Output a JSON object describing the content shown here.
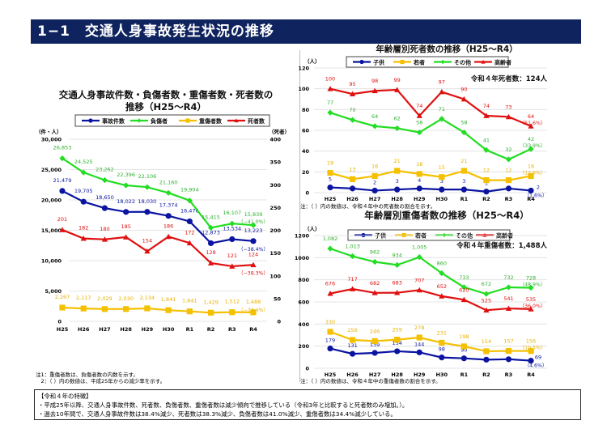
{
  "page": {
    "title": "1−1　交通人身事故発生状況の推移"
  },
  "chart_data": [
    {
      "id": "main",
      "type": "line",
      "title": "交通人身事故件数・負傷者数・重傷者数・死者数の推移（H25～R4）",
      "title_lines": [
        "交通人身事故件数・負傷者数・重傷者数・死者数の",
        "推移（H25～R4）"
      ],
      "categories": [
        "H25",
        "H26",
        "H27",
        "H28",
        "H29",
        "H30",
        "R1",
        "R2",
        "R3",
        "R4"
      ],
      "ylabel_left": "（件・人）",
      "ylabel_right": "（死者）",
      "ylim_left": [
        0,
        30000
      ],
      "ylim_right": [
        0,
        400
      ],
      "yticks_left": [
        "0",
        "5,000",
        "10,000",
        "15,000",
        "20,000",
        "25,000",
        "30,000"
      ],
      "yticks_left_values": [
        0,
        5000,
        10000,
        15000,
        20000,
        25000,
        30000
      ],
      "yticks_right": [
        "0",
        "50",
        "100",
        "150",
        "200",
        "250",
        "300",
        "350",
        "400"
      ],
      "yticks_right_values": [
        0,
        50,
        100,
        150,
        200,
        250,
        300,
        350,
        400
      ],
      "grid": true,
      "legend_position": "top",
      "series": [
        {
          "name": "事故件数",
          "color": "#0a14a0",
          "marker": "circle",
          "axis": "left",
          "values": [
            21479,
            19705,
            18650,
            18022,
            18030,
            17374,
            16476,
            12873,
            13534,
            13223
          ],
          "labels": [
            "21,479",
            "19,705",
            "18,650",
            "18,022",
            "18,030",
            "17,374",
            "16,476",
            "12,873",
            "13,534",
            "13,223"
          ],
          "last_note": "（−38.4%）"
        },
        {
          "name": "負傷者",
          "color": "#22dd22",
          "marker": "diamond",
          "axis": "left",
          "values": [
            26853,
            24525,
            23262,
            22396,
            22106,
            21160,
            19904,
            15415,
            16107,
            15839
          ],
          "labels": [
            "26,853",
            "24,525",
            "23,262",
            "22,396",
            "22,106",
            "21,160",
            "19,904",
            "15,415",
            "16,107",
            "15,839"
          ],
          "last_note": "（−41.0%）"
        },
        {
          "name": "重傷者数",
          "color": "#f5c000",
          "marker": "square",
          "axis": "left",
          "values": [
            2267,
            2117,
            2029,
            2030,
            2134,
            1841,
            1641,
            1429,
            1512,
            1488
          ],
          "labels": [
            "2,267",
            "2,117",
            "2,029",
            "2,030",
            "2,134",
            "1,841",
            "1,641",
            "1,429",
            "1,512",
            "1,488"
          ],
          "last_note": "（−34.4%）"
        },
        {
          "name": "死者数",
          "color": "#e01010",
          "marker": "triangle",
          "axis": "right",
          "values": [
            201,
            182,
            180,
            185,
            154,
            186,
            172,
            128,
            121,
            124
          ],
          "labels": [
            "201",
            "182",
            "180",
            "185",
            "154",
            "186",
            "172",
            "128",
            "121",
            "124"
          ],
          "last_note": "（−38.3%）"
        }
      ],
      "notes": [
        "注1：重傷者数は、負傷者数の内数を示す。",
        "　2：（ ）内の数値は、平成25年からの減少率を示す。"
      ]
    },
    {
      "id": "deaths",
      "type": "line",
      "title": "年齢層別死者数の推移（H25～R4）",
      "categories": [
        "H25",
        "H26",
        "H27",
        "H28",
        "H29",
        "H30",
        "R1",
        "R2",
        "R3",
        "R4"
      ],
      "ylabel": "（人）",
      "ylim": [
        0,
        120
      ],
      "yticks": [
        "0",
        "20",
        "40",
        "60",
        "80",
        "100",
        "120"
      ],
      "ytick_values": [
        0,
        20,
        40,
        60,
        80,
        100,
        120
      ],
      "grid": true,
      "legend_position": "top",
      "annotation": "令和４年死者数：124人",
      "series": [
        {
          "name": "子供",
          "color": "#0a14a0",
          "marker": "circle",
          "values": [
            5,
            4,
            2,
            3,
            4,
            3,
            3,
            1,
            4,
            2
          ],
          "last_note": "（1.6%）"
        },
        {
          "name": "若者",
          "color": "#f5c000",
          "marker": "square",
          "values": [
            19,
            13,
            16,
            21,
            18,
            15,
            21,
            12,
            12,
            16
          ],
          "last_note": "（12.9%）"
        },
        {
          "name": "その他",
          "color": "#22dd22",
          "marker": "diamond",
          "values": [
            77,
            70,
            64,
            62,
            58,
            71,
            58,
            41,
            32,
            42
          ],
          "last_note": "（33.9%）"
        },
        {
          "name": "高齢者",
          "color": "#e01010",
          "marker": "triangle",
          "values": [
            100,
            95,
            98,
            99,
            74,
            97,
            90,
            74,
            73,
            64
          ],
          "last_note": "（51.6%）"
        }
      ],
      "notes": [
        "注：（ ）内の数値は、令和４年中の死者数の割合を示す。"
      ]
    },
    {
      "id": "serious",
      "type": "line",
      "title": "年齢層別重傷者数の推移（H25～R4）",
      "categories": [
        "H25",
        "H26",
        "H27",
        "H28",
        "H29",
        "H30",
        "R1",
        "R2",
        "R3",
        "R4"
      ],
      "ylabel": "（人）",
      "ylim": [
        0,
        1200
      ],
      "yticks": [
        "0",
        "200",
        "400",
        "600",
        "800",
        "1000",
        "1200"
      ],
      "ytick_values": [
        0,
        200,
        400,
        600,
        800,
        1000,
        1200
      ],
      "grid": true,
      "legend_position": "top",
      "annotation": "令和４年重傷者数：1,488人",
      "series": [
        {
          "name": "子供",
          "color": "#0a14a0",
          "marker": "circle",
          "values": [
            179,
            131,
            139,
            154,
            144,
            98,
            90,
            78,
            82,
            69
          ],
          "labels": [
            "179",
            "131",
            "139",
            "154",
            "144",
            "98",
            "90",
            "78",
            "82",
            "69"
          ],
          "last_note": "（4.6%）"
        },
        {
          "name": "若者",
          "color": "#f5c000",
          "marker": "square",
          "values": [
            330,
            256,
            246,
            259,
            278,
            231,
            198,
            154,
            157,
            156
          ],
          "labels": [
            "330",
            "256",
            "246",
            "259",
            "278",
            "231",
            "198",
            "154",
            "157",
            "156"
          ],
          "last_note": "（10.5%）"
        },
        {
          "name": "その他",
          "color": "#22dd22",
          "marker": "diamond",
          "values": [
            1082,
            1013,
            962,
            934,
            1005,
            860,
            733,
            672,
            732,
            728
          ],
          "labels": [
            "1,082",
            "1,013",
            "962",
            "934",
            "1,005",
            "860",
            "733",
            "672",
            "732",
            "728"
          ],
          "last_note": "（48.9%）"
        },
        {
          "name": "高齢者",
          "color": "#e01010",
          "marker": "triangle",
          "values": [
            676,
            717,
            682,
            683,
            707,
            652,
            620,
            525,
            541,
            535
          ],
          "labels": [
            "676",
            "717",
            "682",
            "683",
            "707",
            "652",
            "620",
            "525",
            "541",
            "535"
          ],
          "last_note": "（36.0%）"
        }
      ],
      "notes": [
        "注：（ ）内の数値は、令和４年中の重傷者数の割合を示す。"
      ]
    }
  ],
  "features": {
    "heading": "【令和４年の特徴】",
    "lines": [
      "・平成25年以降、交通人身事故件数、死者数、負傷者数、重傷者数は減少傾向で推移している（令和3年と比較すると死者数のみ増加。）。",
      "・過去10年間で、交通人身事故件数は38.4%減少、死者数は38.3%減少、負傷者数は41.0%減少、重傷者数は34.4%減少している。"
    ]
  }
}
